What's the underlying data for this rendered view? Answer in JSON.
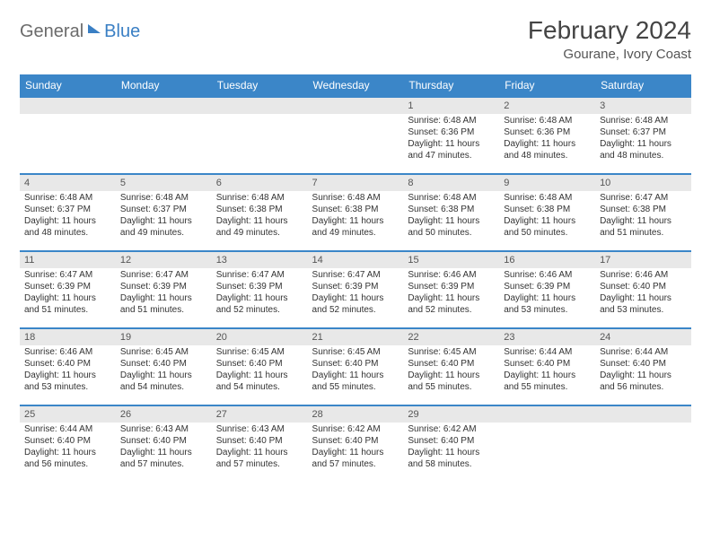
{
  "logo": {
    "part1": "General",
    "part2": "Blue"
  },
  "title": "February 2024",
  "location": "Gourane, Ivory Coast",
  "colors": {
    "header_bg": "#3b86c8",
    "header_text": "#ffffff",
    "row_divider": "#3b86c8",
    "daynum_bg": "#e8e8e8",
    "body_text": "#333333",
    "logo_gray": "#6b6b6b",
    "logo_blue": "#3a7fc4"
  },
  "weekdays": [
    "Sunday",
    "Monday",
    "Tuesday",
    "Wednesday",
    "Thursday",
    "Friday",
    "Saturday"
  ],
  "leading_blanks": 4,
  "days": [
    {
      "n": 1,
      "sunrise": "6:48 AM",
      "sunset": "6:36 PM",
      "daylight": "11 hours and 47 minutes."
    },
    {
      "n": 2,
      "sunrise": "6:48 AM",
      "sunset": "6:36 PM",
      "daylight": "11 hours and 48 minutes."
    },
    {
      "n": 3,
      "sunrise": "6:48 AM",
      "sunset": "6:37 PM",
      "daylight": "11 hours and 48 minutes."
    },
    {
      "n": 4,
      "sunrise": "6:48 AM",
      "sunset": "6:37 PM",
      "daylight": "11 hours and 48 minutes."
    },
    {
      "n": 5,
      "sunrise": "6:48 AM",
      "sunset": "6:37 PM",
      "daylight": "11 hours and 49 minutes."
    },
    {
      "n": 6,
      "sunrise": "6:48 AM",
      "sunset": "6:38 PM",
      "daylight": "11 hours and 49 minutes."
    },
    {
      "n": 7,
      "sunrise": "6:48 AM",
      "sunset": "6:38 PM",
      "daylight": "11 hours and 49 minutes."
    },
    {
      "n": 8,
      "sunrise": "6:48 AM",
      "sunset": "6:38 PM",
      "daylight": "11 hours and 50 minutes."
    },
    {
      "n": 9,
      "sunrise": "6:48 AM",
      "sunset": "6:38 PM",
      "daylight": "11 hours and 50 minutes."
    },
    {
      "n": 10,
      "sunrise": "6:47 AM",
      "sunset": "6:38 PM",
      "daylight": "11 hours and 51 minutes."
    },
    {
      "n": 11,
      "sunrise": "6:47 AM",
      "sunset": "6:39 PM",
      "daylight": "11 hours and 51 minutes."
    },
    {
      "n": 12,
      "sunrise": "6:47 AM",
      "sunset": "6:39 PM",
      "daylight": "11 hours and 51 minutes."
    },
    {
      "n": 13,
      "sunrise": "6:47 AM",
      "sunset": "6:39 PM",
      "daylight": "11 hours and 52 minutes."
    },
    {
      "n": 14,
      "sunrise": "6:47 AM",
      "sunset": "6:39 PM",
      "daylight": "11 hours and 52 minutes."
    },
    {
      "n": 15,
      "sunrise": "6:46 AM",
      "sunset": "6:39 PM",
      "daylight": "11 hours and 52 minutes."
    },
    {
      "n": 16,
      "sunrise": "6:46 AM",
      "sunset": "6:39 PM",
      "daylight": "11 hours and 53 minutes."
    },
    {
      "n": 17,
      "sunrise": "6:46 AM",
      "sunset": "6:40 PM",
      "daylight": "11 hours and 53 minutes."
    },
    {
      "n": 18,
      "sunrise": "6:46 AM",
      "sunset": "6:40 PM",
      "daylight": "11 hours and 53 minutes."
    },
    {
      "n": 19,
      "sunrise": "6:45 AM",
      "sunset": "6:40 PM",
      "daylight": "11 hours and 54 minutes."
    },
    {
      "n": 20,
      "sunrise": "6:45 AM",
      "sunset": "6:40 PM",
      "daylight": "11 hours and 54 minutes."
    },
    {
      "n": 21,
      "sunrise": "6:45 AM",
      "sunset": "6:40 PM",
      "daylight": "11 hours and 55 minutes."
    },
    {
      "n": 22,
      "sunrise": "6:45 AM",
      "sunset": "6:40 PM",
      "daylight": "11 hours and 55 minutes."
    },
    {
      "n": 23,
      "sunrise": "6:44 AM",
      "sunset": "6:40 PM",
      "daylight": "11 hours and 55 minutes."
    },
    {
      "n": 24,
      "sunrise": "6:44 AM",
      "sunset": "6:40 PM",
      "daylight": "11 hours and 56 minutes."
    },
    {
      "n": 25,
      "sunrise": "6:44 AM",
      "sunset": "6:40 PM",
      "daylight": "11 hours and 56 minutes."
    },
    {
      "n": 26,
      "sunrise": "6:43 AM",
      "sunset": "6:40 PM",
      "daylight": "11 hours and 57 minutes."
    },
    {
      "n": 27,
      "sunrise": "6:43 AM",
      "sunset": "6:40 PM",
      "daylight": "11 hours and 57 minutes."
    },
    {
      "n": 28,
      "sunrise": "6:42 AM",
      "sunset": "6:40 PM",
      "daylight": "11 hours and 57 minutes."
    },
    {
      "n": 29,
      "sunrise": "6:42 AM",
      "sunset": "6:40 PM",
      "daylight": "11 hours and 58 minutes."
    }
  ],
  "labels": {
    "sunrise": "Sunrise:",
    "sunset": "Sunset:",
    "daylight": "Daylight:"
  }
}
